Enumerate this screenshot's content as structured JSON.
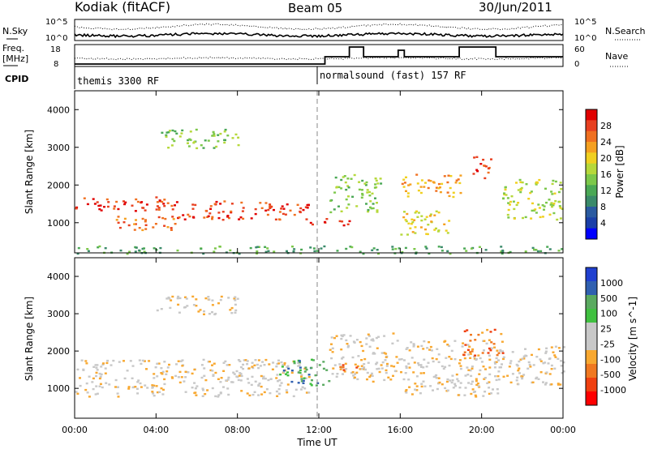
{
  "header": {
    "station": "Kodiak (fitACF)",
    "beam": "Beam 05",
    "date": "30/Jun/2011"
  },
  "noise_panel": {
    "left_label": "N.Sky",
    "right_label": "N.Search",
    "tick_top": "10^5",
    "tick_bottom": "10^0",
    "right_tick_top": "10^5",
    "right_tick_bottom": "10^0"
  },
  "freq_panel": {
    "left_label_1": "Freq.",
    "left_label_2": "[MHz]",
    "left_tick_top": "18",
    "left_tick_bottom": "8",
    "right_label": "Nave",
    "right_tick_top": "60",
    "right_tick_bottom": "0"
  },
  "cpid": {
    "label": "CPID",
    "mode1": "themis 3300 RF",
    "mode2": "normalsound (fast) 157 RF"
  },
  "axes": {
    "ylabel": "Slant Range [km]",
    "xlabel": "Time UT",
    "y_ticks": [
      "1000",
      "2000",
      "3000",
      "4000"
    ],
    "x_ticks": [
      "00:00",
      "04:00",
      "08:00",
      "12:00",
      "16:00",
      "20:00",
      "00:00"
    ]
  },
  "colors": {
    "power": [
      "#0000ff",
      "#1a3fa8",
      "#2a5aa0",
      "#3a8a6a",
      "#4aa855",
      "#7cc84a",
      "#b6d83a",
      "#f0d020",
      "#f5a020",
      "#f07020",
      "#e84020",
      "#e00000"
    ],
    "velocity": [
      "#ff0000",
      "#f04010",
      "#f07820",
      "#f8a830",
      "#c8c8c8",
      "#c8c8c8",
      "#40c040",
      "#5aaa60",
      "#3060b0",
      "#2040d0"
    ]
  },
  "chart_data": [
    {
      "type": "heatmap",
      "title": "Power",
      "x_ticks": [
        "00:00",
        "04:00",
        "08:00",
        "12:00",
        "16:00",
        "20:00",
        "00:00"
      ],
      "y_range": [
        200,
        4500
      ],
      "colorbar": {
        "label": "Power [dB]",
        "ticks": [
          "4",
          "8",
          "12",
          "16",
          "20",
          "24",
          "28"
        ]
      },
      "bands": [
        {
          "t0": 0,
          "t1": 5,
          "r0": 1300,
          "r1": 1700,
          "level": 10
        },
        {
          "t0": 5,
          "t1": 11.5,
          "r0": 1100,
          "r1": 1600,
          "level": 10
        },
        {
          "t0": 2,
          "t1": 5,
          "r0": 800,
          "r1": 1200,
          "level": 9
        },
        {
          "t0": 11.5,
          "t1": 13.5,
          "r0": 950,
          "r1": 1150,
          "level": 11
        },
        {
          "t0": 12.5,
          "t1": 15,
          "r0": 1300,
          "r1": 2300,
          "level": 5
        },
        {
          "t0": 16,
          "t1": 18.5,
          "r0": 700,
          "r1": 1400,
          "level": 7
        },
        {
          "t0": 16,
          "t1": 19,
          "r0": 1700,
          "r1": 2300,
          "level": 8
        },
        {
          "t0": 19.5,
          "t1": 20.5,
          "r0": 2200,
          "r1": 2800,
          "level": 10
        },
        {
          "t0": 21,
          "t1": 24,
          "r0": 1100,
          "r1": 2200,
          "level": 6
        },
        {
          "t0": 4,
          "t1": 8,
          "r0": 3000,
          "r1": 3500,
          "level": 5
        },
        {
          "t0": 0,
          "t1": 24,
          "r0": 200,
          "r1": 400,
          "level": 4
        }
      ]
    },
    {
      "type": "heatmap",
      "title": "Velocity",
      "x_ticks": [
        "00:00",
        "04:00",
        "08:00",
        "12:00",
        "16:00",
        "20:00",
        "00:00"
      ],
      "y_range": [
        200,
        4500
      ],
      "colorbar": {
        "label": "Velocity [m s^-1]",
        "ticks": [
          "1000",
          "500",
          "100",
          "25",
          "-25",
          "-100",
          "-500",
          "-1000"
        ]
      },
      "bands": [
        {
          "t0": 0,
          "t1": 11.5,
          "r0": 800,
          "r1": 1800,
          "level": 4
        },
        {
          "t0": 4,
          "t1": 8,
          "r0": 3000,
          "r1": 3500,
          "level": 4
        },
        {
          "t0": 10,
          "t1": 12.5,
          "r0": 1100,
          "r1": 1800,
          "level": 7
        },
        {
          "t0": 12.5,
          "t1": 16,
          "r0": 1200,
          "r1": 2500,
          "level": 4
        },
        {
          "t0": 16,
          "t1": 21,
          "r0": 800,
          "r1": 2300,
          "level": 4
        },
        {
          "t0": 19,
          "t1": 21,
          "r0": 1900,
          "r1": 2600,
          "level": 2
        },
        {
          "t0": 21,
          "t1": 24,
          "r0": 1100,
          "r1": 2200,
          "level": 4
        },
        {
          "t0": 13,
          "t1": 14,
          "r0": 1400,
          "r1": 1700,
          "level": 2
        }
      ]
    }
  ]
}
